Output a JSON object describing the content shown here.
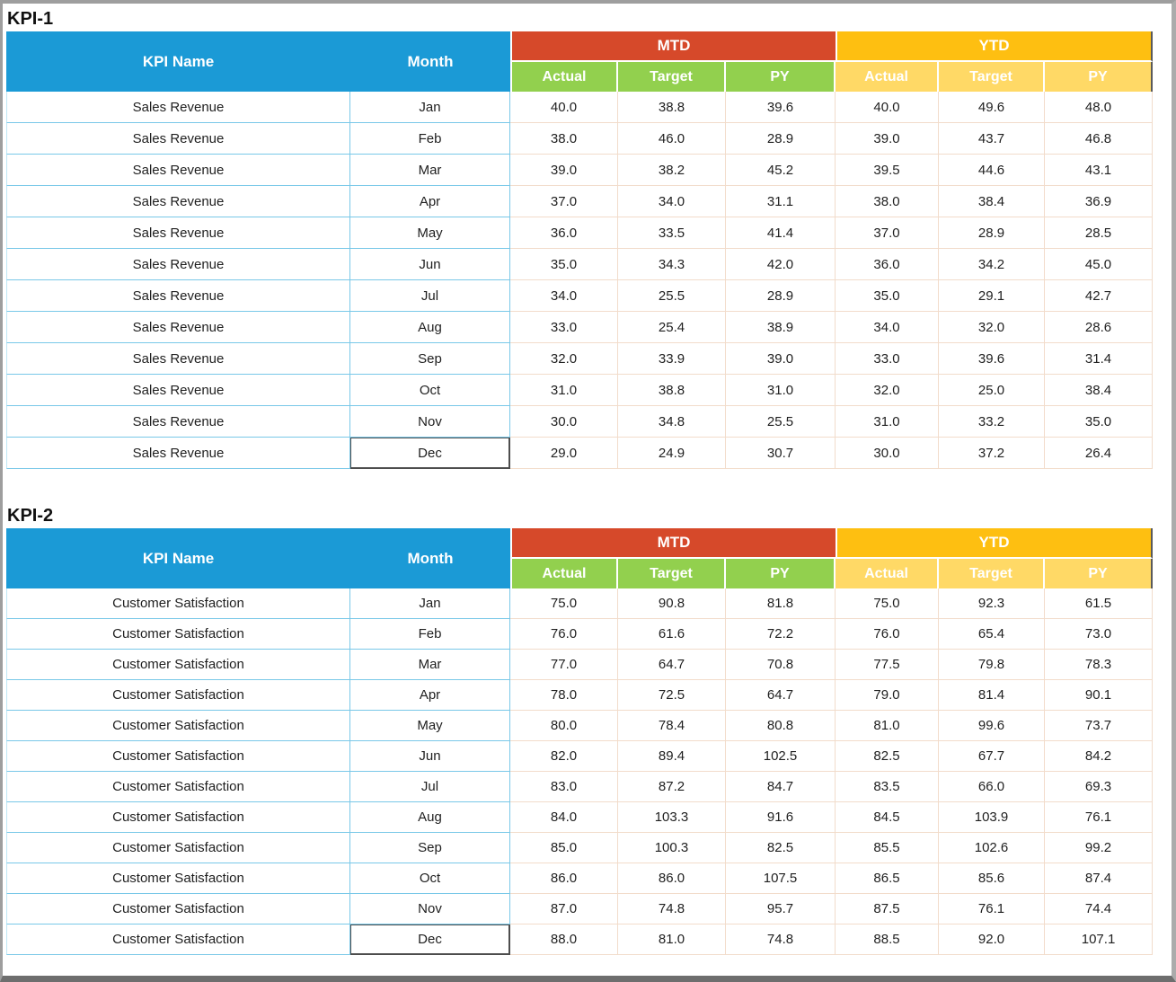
{
  "colors": {
    "header_blue": "#1B9AD6",
    "mtd_red": "#D6492A",
    "ytd_gold": "#FEBF11",
    "mtd_sub_green": "#92D04E",
    "ytd_sub_yellow": "#FFD966",
    "grid_cyan": "#79C8E8",
    "grid_tan": "#F2DCCB",
    "frame_gray": "#9E9E9E"
  },
  "tables": [
    {
      "title": "KPI-1",
      "header": {
        "kpi_name": "KPI Name",
        "month": "Month",
        "mtd": "MTD",
        "ytd": "YTD",
        "sub": [
          "Actual",
          "Target",
          "PY",
          "Actual",
          "Target",
          "PY"
        ]
      },
      "rows": [
        {
          "kpi": "Sales Revenue",
          "month": "Jan",
          "values": [
            "40.0",
            "38.8",
            "39.6",
            "40.0",
            "49.6",
            "48.0"
          ]
        },
        {
          "kpi": "Sales Revenue",
          "month": "Feb",
          "values": [
            "38.0",
            "46.0",
            "28.9",
            "39.0",
            "43.7",
            "46.8"
          ]
        },
        {
          "kpi": "Sales Revenue",
          "month": "Mar",
          "values": [
            "39.0",
            "38.2",
            "45.2",
            "39.5",
            "44.6",
            "43.1"
          ]
        },
        {
          "kpi": "Sales Revenue",
          "month": "Apr",
          "values": [
            "37.0",
            "34.0",
            "31.1",
            "38.0",
            "38.4",
            "36.9"
          ]
        },
        {
          "kpi": "Sales Revenue",
          "month": "May",
          "values": [
            "36.0",
            "33.5",
            "41.4",
            "37.0",
            "28.9",
            "28.5"
          ]
        },
        {
          "kpi": "Sales Revenue",
          "month": "Jun",
          "values": [
            "35.0",
            "34.3",
            "42.0",
            "36.0",
            "34.2",
            "45.0"
          ]
        },
        {
          "kpi": "Sales Revenue",
          "month": "Jul",
          "values": [
            "34.0",
            "25.5",
            "28.9",
            "35.0",
            "29.1",
            "42.7"
          ]
        },
        {
          "kpi": "Sales Revenue",
          "month": "Aug",
          "values": [
            "33.0",
            "25.4",
            "38.9",
            "34.0",
            "32.0",
            "28.6"
          ]
        },
        {
          "kpi": "Sales Revenue",
          "month": "Sep",
          "values": [
            "32.0",
            "33.9",
            "39.0",
            "33.0",
            "39.6",
            "31.4"
          ]
        },
        {
          "kpi": "Sales Revenue",
          "month": "Oct",
          "values": [
            "31.0",
            "38.8",
            "31.0",
            "32.0",
            "25.0",
            "38.4"
          ]
        },
        {
          "kpi": "Sales Revenue",
          "month": "Nov",
          "values": [
            "30.0",
            "34.8",
            "25.5",
            "31.0",
            "33.2",
            "35.0"
          ]
        },
        {
          "kpi": "Sales Revenue",
          "month": "Dec",
          "values": [
            "29.0",
            "24.9",
            "30.7",
            "30.0",
            "37.2",
            "26.4"
          ]
        }
      ]
    },
    {
      "title": "KPI-2",
      "header": {
        "kpi_name": "KPI Name",
        "month": "Month",
        "mtd": "MTD",
        "ytd": "YTD",
        "sub": [
          "Actual",
          "Target",
          "PY",
          "Actual",
          "Target",
          "PY"
        ]
      },
      "rows": [
        {
          "kpi": "Customer Satisfaction",
          "month": "Jan",
          "values": [
            "75.0",
            "90.8",
            "81.8",
            "75.0",
            "92.3",
            "61.5"
          ]
        },
        {
          "kpi": "Customer Satisfaction",
          "month": "Feb",
          "values": [
            "76.0",
            "61.6",
            "72.2",
            "76.0",
            "65.4",
            "73.0"
          ]
        },
        {
          "kpi": "Customer Satisfaction",
          "month": "Mar",
          "values": [
            "77.0",
            "64.7",
            "70.8",
            "77.5",
            "79.8",
            "78.3"
          ]
        },
        {
          "kpi": "Customer Satisfaction",
          "month": "Apr",
          "values": [
            "78.0",
            "72.5",
            "64.7",
            "79.0",
            "81.4",
            "90.1"
          ]
        },
        {
          "kpi": "Customer Satisfaction",
          "month": "May",
          "values": [
            "80.0",
            "78.4",
            "80.8",
            "81.0",
            "99.6",
            "73.7"
          ]
        },
        {
          "kpi": "Customer Satisfaction",
          "month": "Jun",
          "values": [
            "82.0",
            "89.4",
            "102.5",
            "82.5",
            "67.7",
            "84.2"
          ]
        },
        {
          "kpi": "Customer Satisfaction",
          "month": "Jul",
          "values": [
            "83.0",
            "87.2",
            "84.7",
            "83.5",
            "66.0",
            "69.3"
          ]
        },
        {
          "kpi": "Customer Satisfaction",
          "month": "Aug",
          "values": [
            "84.0",
            "103.3",
            "91.6",
            "84.5",
            "103.9",
            "76.1"
          ]
        },
        {
          "kpi": "Customer Satisfaction",
          "month": "Sep",
          "values": [
            "85.0",
            "100.3",
            "82.5",
            "85.5",
            "102.6",
            "99.2"
          ]
        },
        {
          "kpi": "Customer Satisfaction",
          "month": "Oct",
          "values": [
            "86.0",
            "86.0",
            "107.5",
            "86.5",
            "85.6",
            "87.4"
          ]
        },
        {
          "kpi": "Customer Satisfaction",
          "month": "Nov",
          "values": [
            "87.0",
            "74.8",
            "95.7",
            "87.5",
            "76.1",
            "74.4"
          ]
        },
        {
          "kpi": "Customer Satisfaction",
          "month": "Dec",
          "values": [
            "88.0",
            "81.0",
            "74.8",
            "88.5",
            "92.0",
            "107.1"
          ]
        }
      ]
    }
  ]
}
